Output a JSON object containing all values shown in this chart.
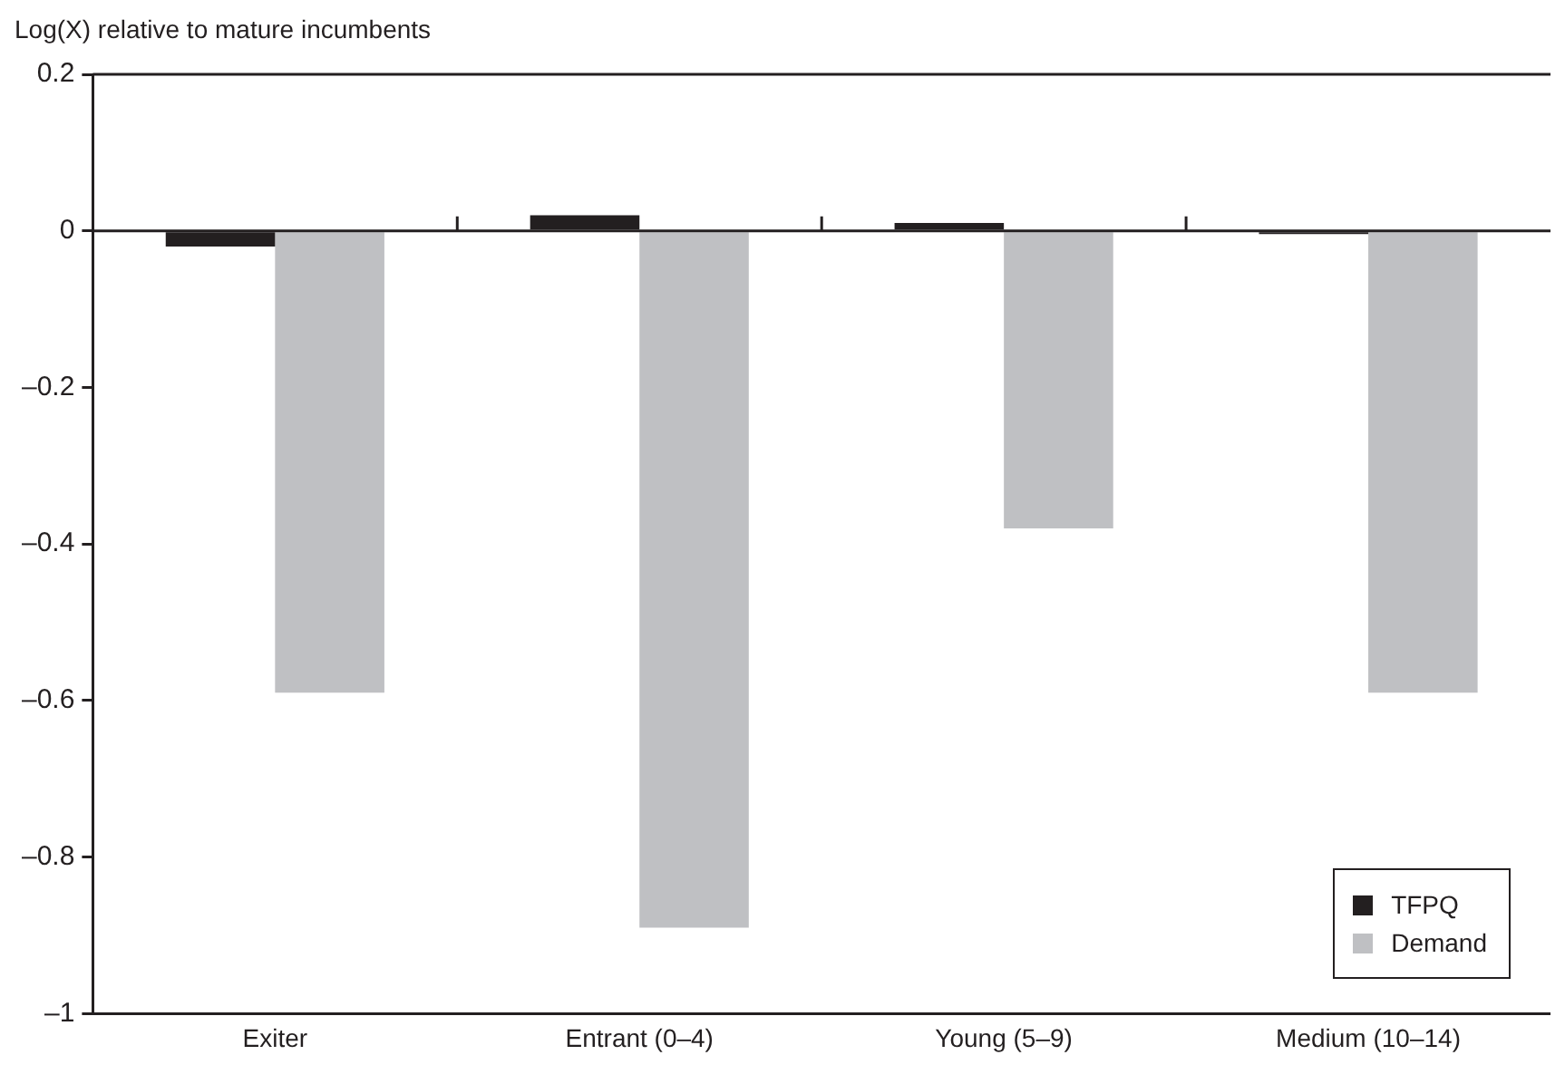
{
  "chart_data": {
    "type": "bar",
    "ylabel": "Log(X) relative to mature incumbents",
    "categories": [
      "Exiter",
      "Entrant (0–4)",
      "Young (5–9)",
      "Medium (10–14)"
    ],
    "series": [
      {
        "name": "TFPQ",
        "color": "#231f20",
        "values": [
          -0.02,
          0.02,
          0.01,
          -0.004
        ]
      },
      {
        "name": "Demand",
        "color": "#bfc0c3",
        "values": [
          -0.59,
          -0.89,
          -0.38,
          -0.59
        ]
      }
    ],
    "ylim": [
      -1,
      0.2
    ],
    "yticks": [
      {
        "value": -1,
        "label": "–1"
      },
      {
        "value": -0.8,
        "label": "–0.8"
      },
      {
        "value": -0.6,
        "label": "–0.6"
      },
      {
        "value": -0.4,
        "label": "–0.4"
      },
      {
        "value": -0.2,
        "label": "–0.2"
      },
      0,
      0.2
    ],
    "legend": "bottom right"
  }
}
